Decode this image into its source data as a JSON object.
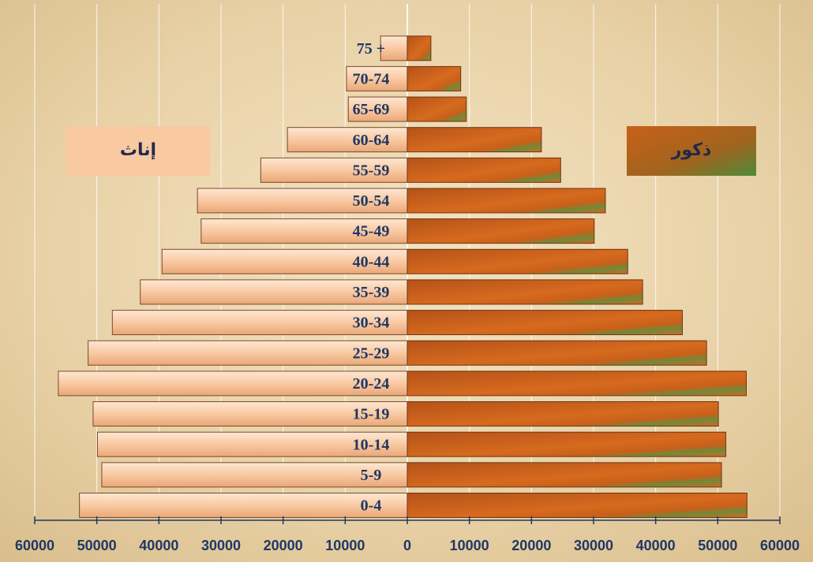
{
  "chart_data": {
    "type": "population-pyramid",
    "categories": [
      "0-4",
      "5-9",
      "10-14",
      "15-19",
      "20-24",
      "25-29",
      "30-34",
      "35-39",
      "40-44",
      "45-49",
      "50-54",
      "55-59",
      "60-64",
      "65-69",
      "70-74",
      "75 +"
    ],
    "series": [
      {
        "name": "إناث",
        "color": "#f9c9a2",
        "side": "left",
        "values": [
          52800,
          49200,
          49900,
          50600,
          56200,
          51400,
          47500,
          43000,
          39500,
          33200,
          33800,
          23600,
          19300,
          9500,
          9800,
          4300
        ]
      },
      {
        "name": "ذكور",
        "color": "#c8601a",
        "side": "right",
        "values": [
          54700,
          50600,
          51300,
          50100,
          54600,
          48200,
          44300,
          37900,
          35500,
          30100,
          31900,
          24700,
          21600,
          9500,
          8600,
          3800
        ]
      }
    ],
    "xlim": [
      0,
      60000
    ],
    "xticks": [
      0,
      10000,
      20000,
      30000,
      40000,
      50000,
      60000
    ],
    "grid": true
  }
}
